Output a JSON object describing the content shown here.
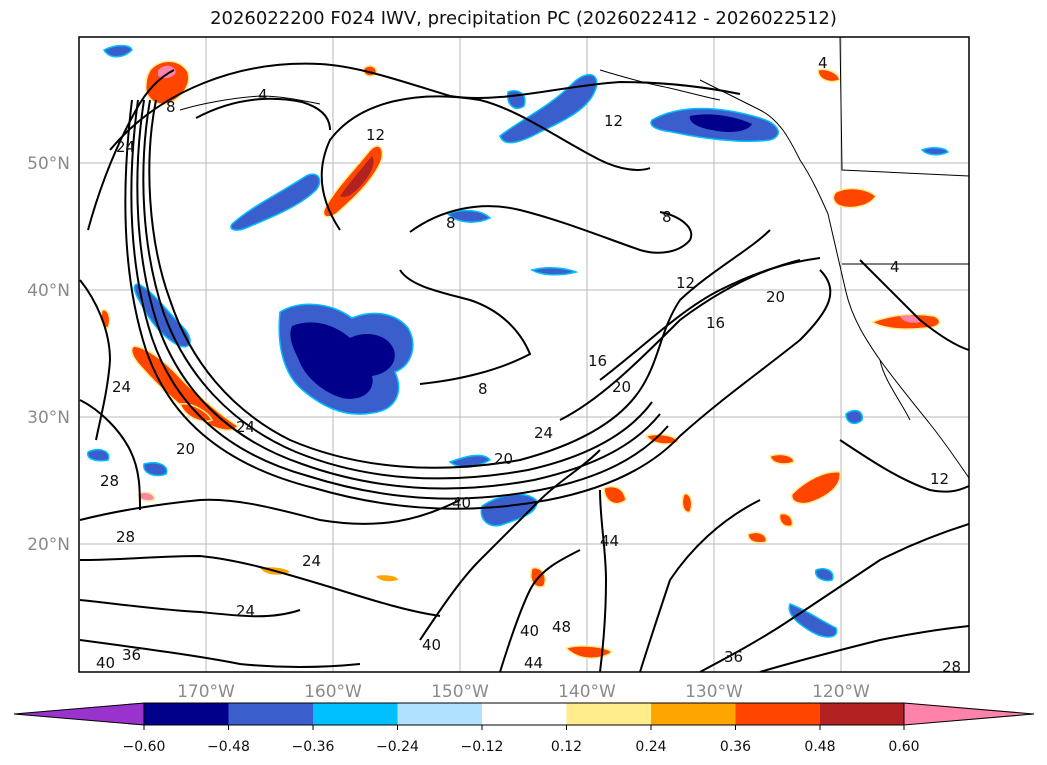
{
  "title": "2026022200 F024 IWV, precipitation PC (2026022412 - 2026022512)",
  "map": {
    "lon_labels": [
      "170°W",
      "160°W",
      "150°W",
      "140°W",
      "130°W",
      "120°W"
    ],
    "lat_labels": [
      "50°N",
      "40°N",
      "30°N",
      "20°N"
    ],
    "contour_labels": [
      "4",
      "4",
      "12",
      "12",
      "8",
      "8",
      "8",
      "12",
      "16",
      "20",
      "16",
      "20",
      "24",
      "24",
      "20",
      "24",
      "28",
      "28",
      "24",
      "24",
      "40",
      "40",
      "44",
      "40",
      "44",
      "36",
      "36",
      "40",
      "48",
      "12",
      "28",
      "20",
      "24",
      "8",
      "4"
    ]
  },
  "colorbar": {
    "ticks": [
      "−0.60",
      "−0.48",
      "−0.36",
      "−0.24",
      "−0.12",
      "0.12",
      "0.24",
      "0.36",
      "0.48",
      "0.60"
    ],
    "colors": [
      "#9a32cd",
      "#00008b",
      "#3a5fcd",
      "#00bfff",
      "#b0e2ff",
      "#ffffff",
      "#ffec8b",
      "#ffa500",
      "#ff4500",
      "#b22222",
      "#ff82ab"
    ]
  }
}
